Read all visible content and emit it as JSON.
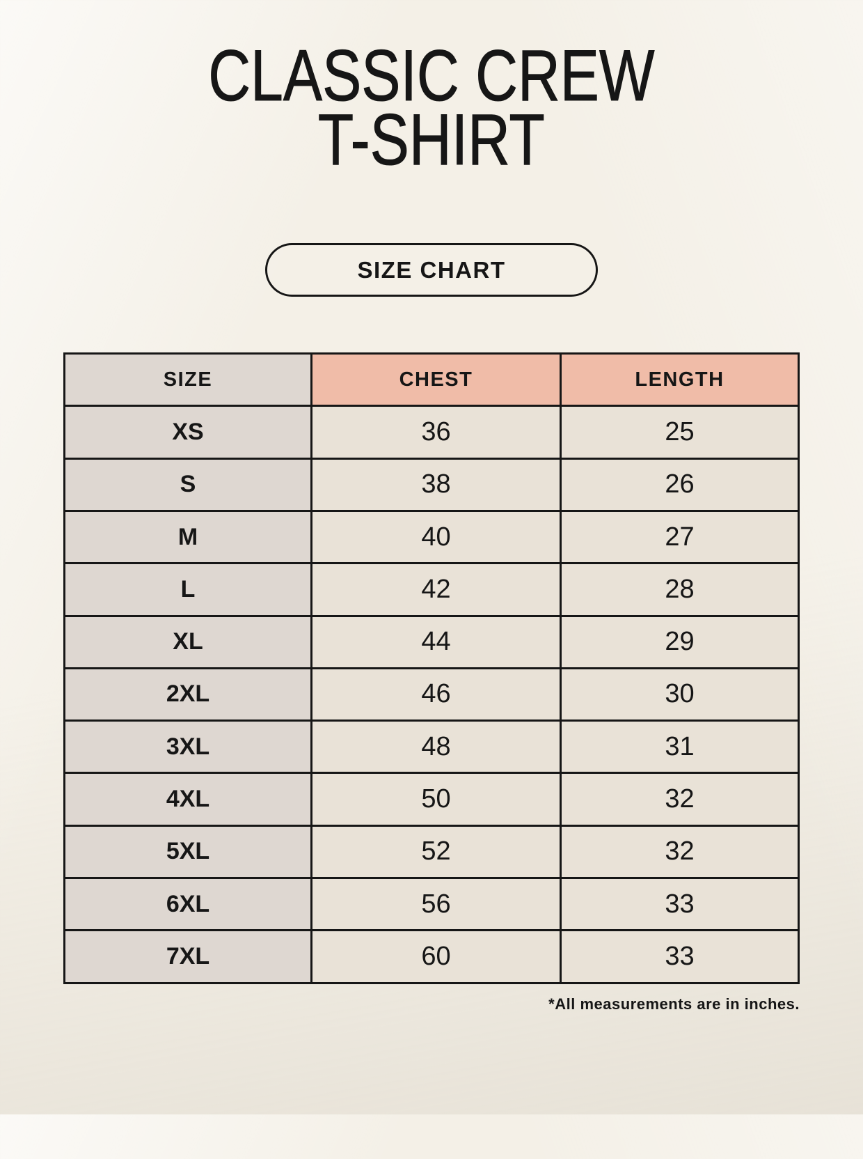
{
  "header": {
    "title_lines": [
      "CLASSIC CREW",
      "T-SHIRT"
    ],
    "badge_label": "SIZE CHART"
  },
  "size_table": {
    "columns": [
      "SIZE",
      "CHEST",
      "LENGTH"
    ],
    "rows": [
      {
        "size": "XS",
        "chest": "36",
        "length": "25"
      },
      {
        "size": "S",
        "chest": "38",
        "length": "26"
      },
      {
        "size": "M",
        "chest": "40",
        "length": "27"
      },
      {
        "size": "L",
        "chest": "42",
        "length": "28"
      },
      {
        "size": "XL",
        "chest": "44",
        "length": "29"
      },
      {
        "size": "2XL",
        "chest": "46",
        "length": "30"
      },
      {
        "size": "3XL",
        "chest": "48",
        "length": "31"
      },
      {
        "size": "4XL",
        "chest": "50",
        "length": "32"
      },
      {
        "size": "5XL",
        "chest": "52",
        "length": "32"
      },
      {
        "size": "6XL",
        "chest": "56",
        "length": "33"
      },
      {
        "size": "7XL",
        "chest": "60",
        "length": "33"
      }
    ]
  },
  "footnote": "*All measurements are in inches.",
  "colors": {
    "page_bg": "#f4f0e7",
    "table_border": "#161616",
    "size_col_bg": "#ded7d1",
    "accent_header_bg": "#f0bca8",
    "data_cell_bg": "#e9e2d7",
    "ink": "#161616"
  }
}
